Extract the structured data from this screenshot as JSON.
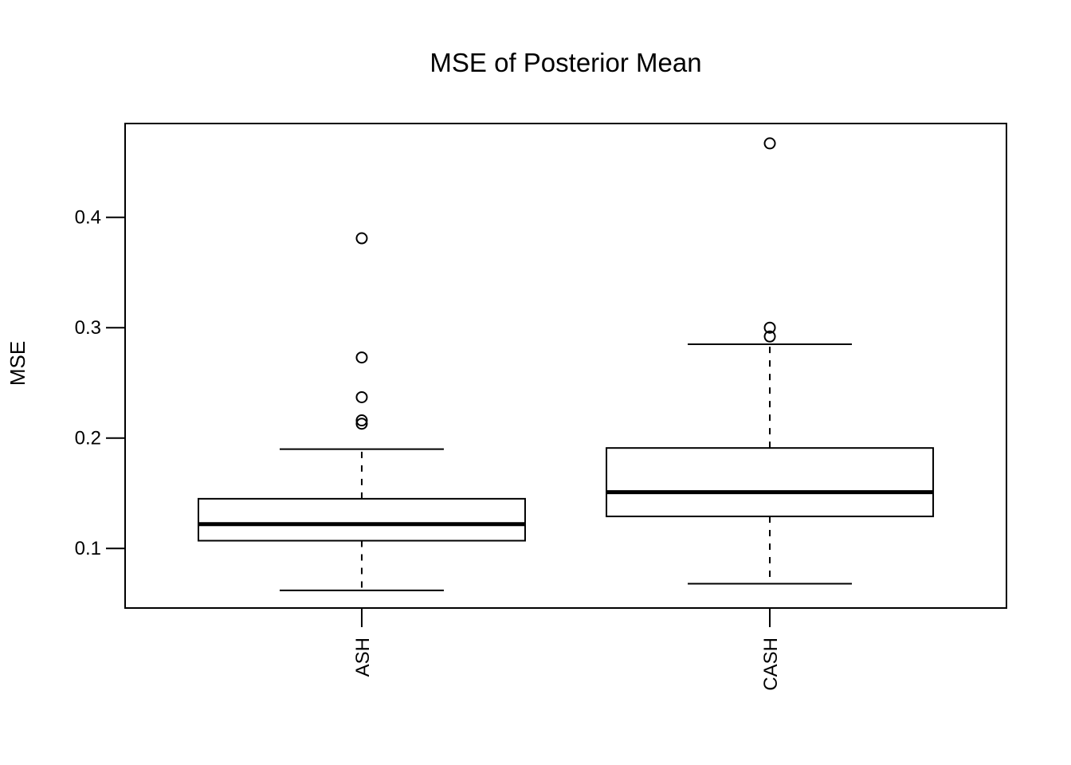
{
  "chart_data": {
    "type": "boxplot",
    "title": "MSE of Posterior Mean",
    "ylabel": "MSE",
    "xlabel": "",
    "categories": [
      "ASH",
      "CASH"
    ],
    "y_ticks": [
      0.1,
      0.2,
      0.3,
      0.4
    ],
    "ylim": [
      0.046,
      0.485
    ],
    "grid": false,
    "legend": "none",
    "series": [
      {
        "name": "ASH",
        "lower_whisker": 0.062,
        "q1": 0.107,
        "median": 0.122,
        "q3": 0.145,
        "upper_whisker": 0.19,
        "outliers": [
          0.381,
          0.273,
          0.237,
          0.216,
          0.213
        ]
      },
      {
        "name": "CASH",
        "lower_whisker": 0.068,
        "q1": 0.129,
        "median": 0.151,
        "q3": 0.191,
        "upper_whisker": 0.285,
        "outliers": [
          0.467,
          0.3,
          0.292
        ]
      }
    ],
    "colors": {
      "stroke": "#000000",
      "box_fill": "#ffffff",
      "background": "#ffffff"
    }
  }
}
